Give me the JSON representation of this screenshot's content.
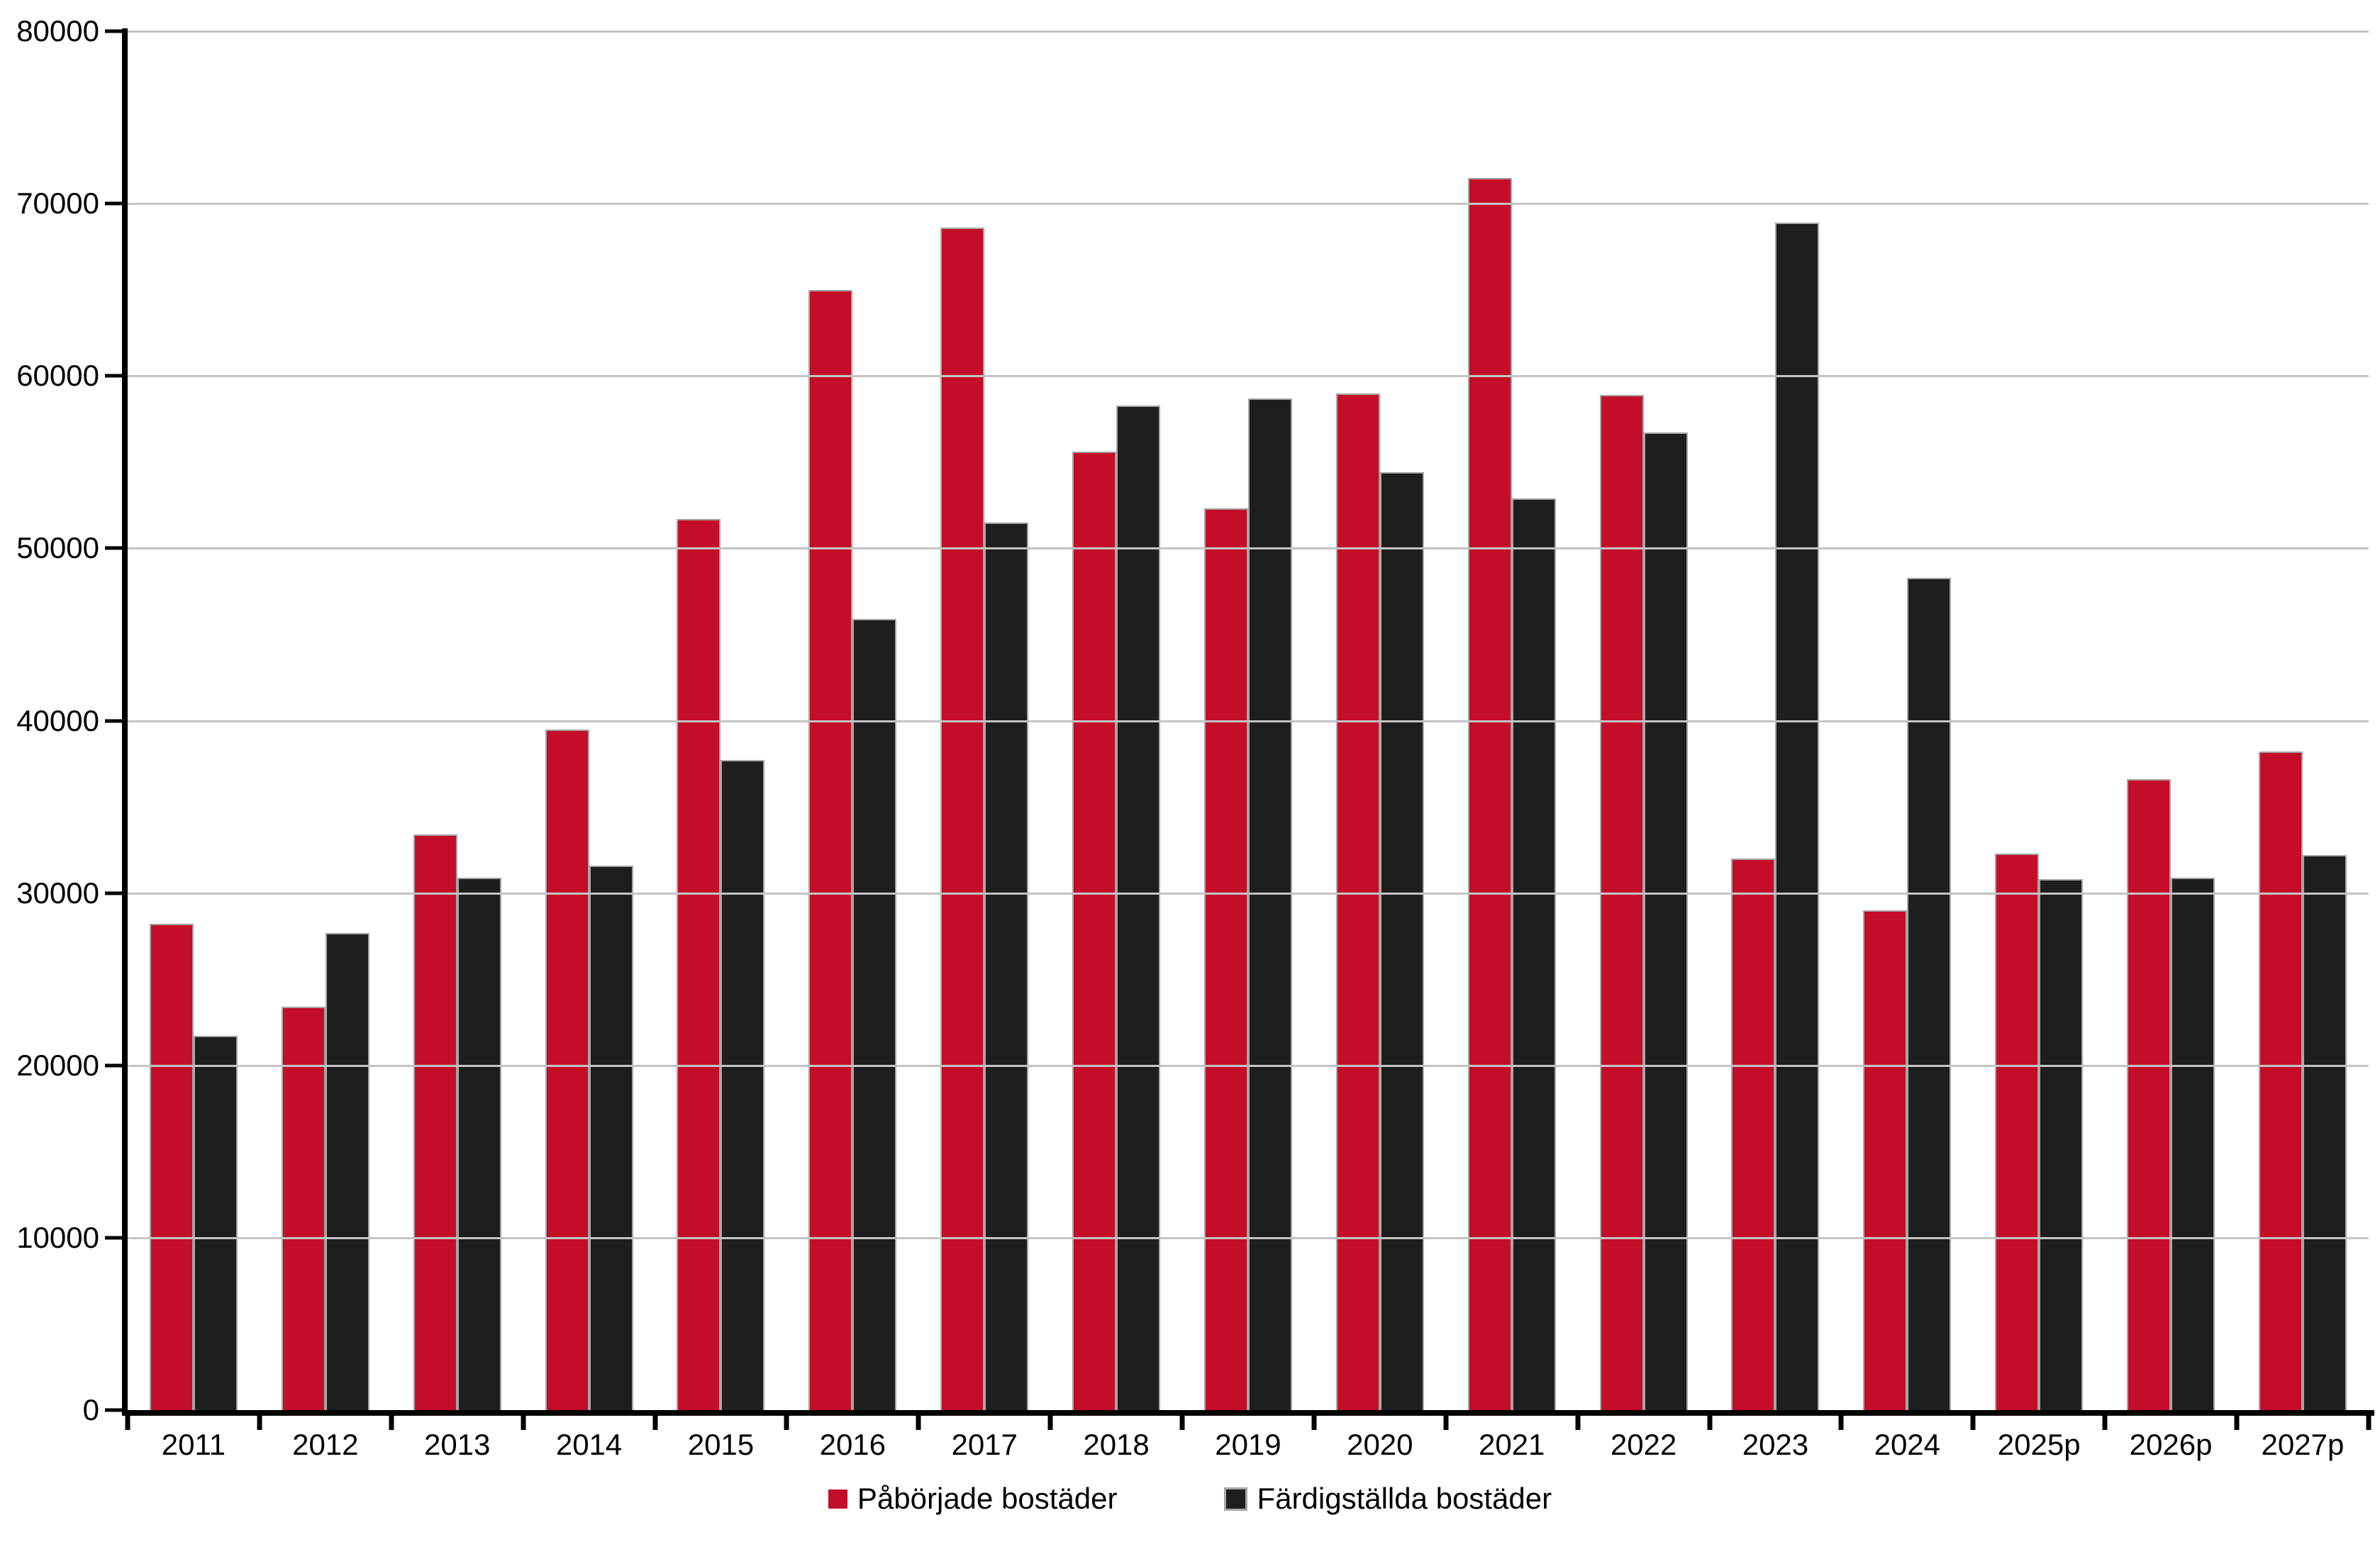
{
  "chart_data": {
    "type": "bar",
    "title": "",
    "xlabel": "",
    "ylabel": "",
    "categories": [
      "2011",
      "2012",
      "2013",
      "2014",
      "2015",
      "2016",
      "2017",
      "2018",
      "2019",
      "2020",
      "2021",
      "2022",
      "2023",
      "2024",
      "2025p",
      "2026p",
      "2027p"
    ],
    "series": [
      {
        "name": "Påbörjade bostäder",
        "color": "#C40D28",
        "values": [
          28200,
          23400,
          33400,
          39500,
          51700,
          65000,
          68600,
          55600,
          52300,
          59000,
          71500,
          58900,
          32000,
          29000,
          32300,
          36600,
          38200
        ]
      },
      {
        "name": "Färdigställda bostäder",
        "color": "#1E1E1E",
        "values": [
          21700,
          27700,
          30900,
          31600,
          37700,
          45900,
          51500,
          58300,
          58700,
          54400,
          52900,
          56700,
          68900,
          48300,
          30800,
          30900,
          32200
        ]
      }
    ],
    "ylim": [
      0,
      80000
    ],
    "yticks": [
      0,
      10000,
      20000,
      30000,
      40000,
      50000,
      60000,
      70000,
      80000
    ],
    "grid": "horizontal-only",
    "legend_position": "bottom-center",
    "colors": {
      "bar_border": "#A6A6A6",
      "gridline": "#C3C3C3",
      "axis": "#000000",
      "background": "#FFFFFF"
    }
  }
}
